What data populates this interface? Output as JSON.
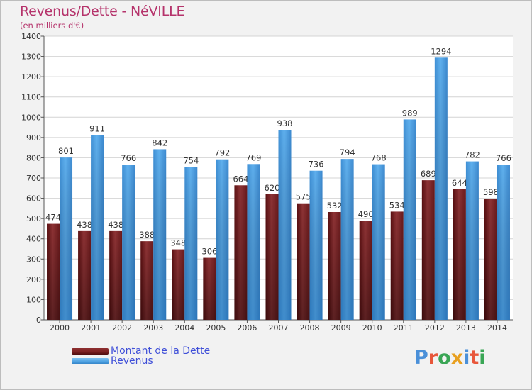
{
  "header": {
    "title": "Revenus/Dette - NéVILLE",
    "subtitle": "(en milliers d'€)"
  },
  "colors": {
    "debt": "#7a1f20",
    "revenue": "#4a9fe0",
    "title": "#b5336b",
    "legend_text": "#3f4fd8"
  },
  "legend": {
    "items": [
      {
        "label": "Montant de la Dette",
        "color": "#7a1f20"
      },
      {
        "label": "Revenus",
        "color": "#4a9fe0"
      }
    ]
  },
  "logo": {
    "text": "Proxiti",
    "letter_colors": [
      "#4a90d9",
      "#e8563a",
      "#3aa655",
      "#e8a020",
      "#4a90d9",
      "#e8563a",
      "#3aa655"
    ]
  },
  "chart_data": {
    "type": "bar",
    "categories": [
      "2000",
      "2001",
      "2002",
      "2003",
      "2004",
      "2005",
      "2006",
      "2007",
      "2008",
      "2009",
      "2010",
      "2011",
      "2012",
      "2013",
      "2014"
    ],
    "series": [
      {
        "name": "Montant de la Dette",
        "values": [
          474,
          438,
          438,
          388,
          348,
          306,
          664,
          620,
          575,
          532,
          490,
          534,
          689,
          644,
          598
        ]
      },
      {
        "name": "Revenus",
        "values": [
          801,
          911,
          766,
          842,
          754,
          792,
          769,
          938,
          736,
          794,
          768,
          989,
          1294,
          782,
          766
        ]
      }
    ],
    "ylim": [
      0,
      1400
    ],
    "yticks": [
      0,
      100,
      200,
      300,
      400,
      500,
      600,
      700,
      800,
      900,
      1000,
      1100,
      1200,
      1300,
      1400
    ],
    "grid": true,
    "legend_position": "bottom-left"
  }
}
